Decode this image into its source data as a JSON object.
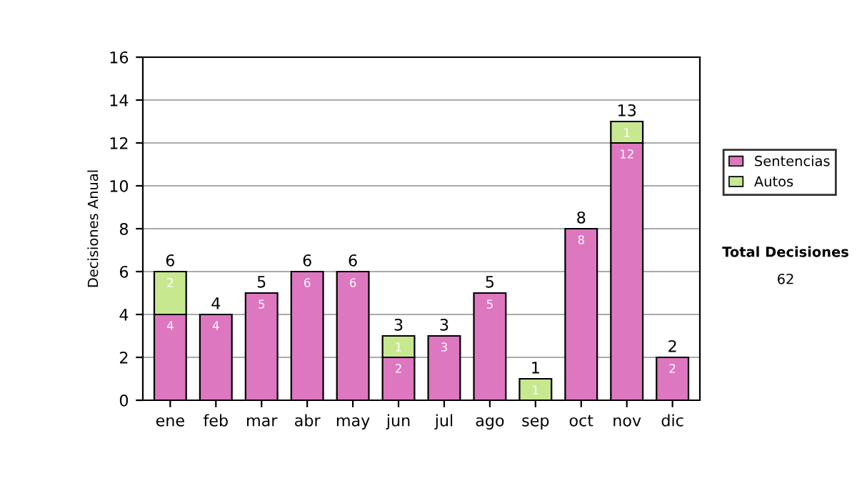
{
  "chart_data": {
    "type": "bar",
    "stacked": true,
    "ylabel": "Decisiones Anual",
    "categories": [
      "ene",
      "feb",
      "mar",
      "abr",
      "may",
      "jun",
      "jul",
      "ago",
      "sep",
      "oct",
      "nov",
      "dic"
    ],
    "series": [
      {
        "name": "Sentencias",
        "color": "#dd77c0",
        "values": [
          4,
          4,
          5,
          6,
          6,
          2,
          3,
          5,
          0,
          8,
          12,
          2
        ],
        "value_labels": [
          "4",
          "4",
          "5",
          "6",
          "6",
          "2",
          "3",
          "5",
          null,
          "8",
          "12",
          "2"
        ]
      },
      {
        "name": "Autos",
        "color": "#c8e890",
        "values": [
          2,
          0,
          0,
          0,
          0,
          1,
          0,
          0,
          1,
          0,
          1,
          0
        ],
        "value_labels": [
          "2",
          null,
          null,
          null,
          null,
          "1",
          null,
          null,
          "1",
          null,
          "1",
          null
        ]
      }
    ],
    "totals": [
      "6",
      "4",
      "5",
      "6",
      "6",
      "3",
      "3",
      "5",
      "1",
      "8",
      "13",
      "2"
    ],
    "ylim": [
      0,
      16
    ],
    "yticks": [
      0,
      2,
      4,
      6,
      8,
      10,
      12,
      14,
      16
    ],
    "grid": "y",
    "legend": "right",
    "annotations": [
      "Total Decisiones",
      "62"
    ]
  }
}
